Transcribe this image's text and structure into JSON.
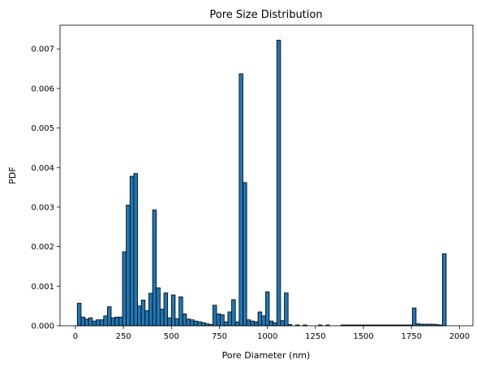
{
  "chart_data": {
    "type": "bar",
    "title": "Pore Size Distribution",
    "xlabel": "Pore Diameter (nm)",
    "ylabel": "PDF",
    "xlim": [
      -80,
      2070
    ],
    "ylim": [
      0,
      0.0076
    ],
    "xticks": [
      0,
      250,
      500,
      750,
      1000,
      1250,
      1500,
      1750,
      2000
    ],
    "xtick_labels": [
      "0",
      "250",
      "500",
      "750",
      "1000",
      "1250",
      "1500",
      "1750",
      "2000"
    ],
    "yticks": [
      0.0,
      0.001,
      0.002,
      0.003,
      0.004,
      0.005,
      0.006,
      0.007
    ],
    "ytick_labels": [
      "0.000",
      "0.001",
      "0.002",
      "0.003",
      "0.004",
      "0.005",
      "0.006",
      "0.007"
    ],
    "bin_start": 10,
    "bin_width": 19.6,
    "values": [
      0.00057,
      0.00022,
      0.00017,
      0.0002,
      0.00012,
      0.00015,
      0.00015,
      0.00025,
      0.00048,
      0.0002,
      0.00022,
      0.00022,
      0.00187,
      0.00305,
      0.00378,
      0.00385,
      0.0005,
      0.00065,
      0.00038,
      0.00082,
      0.00293,
      0.00096,
      0.00042,
      0.00083,
      0.0002,
      0.00078,
      0.00018,
      0.00073,
      0.0003,
      0.00017,
      0.00015,
      0.00012,
      0.0001,
      8e-05,
      5e-05,
      3e-05,
      0.00052,
      0.0003,
      0.00028,
      0.0001,
      0.00035,
      0.00066,
      0.0001,
      0.00637,
      0.00362,
      0.00015,
      0.00012,
      0.0001,
      0.00035,
      0.00025,
      0.00086,
      0.00012,
      8e-05,
      0.00722,
      0.00013,
      0.00083,
      3e-05,
      0.0,
      2e-05,
      0.0,
      2e-05,
      0.0,
      0.0,
      0.0,
      2e-05,
      0.0,
      2e-05,
      0.0,
      0.0,
      0.0,
      2e-05,
      2e-05,
      2e-05,
      2e-05,
      2e-05,
      2e-05,
      2e-05,
      2e-05,
      2e-05,
      2e-05,
      2e-05,
      2e-05,
      2e-05,
      2e-05,
      2e-05,
      2e-05,
      2e-05,
      2e-05,
      2e-05,
      0.00045,
      5e-05,
      4e-05,
      4e-05,
      4e-05,
      4e-05,
      3e-05,
      2e-05,
      0.00182
    ],
    "bar_color": "#1f77b4",
    "edge_color": "#000000",
    "grid": false
  }
}
